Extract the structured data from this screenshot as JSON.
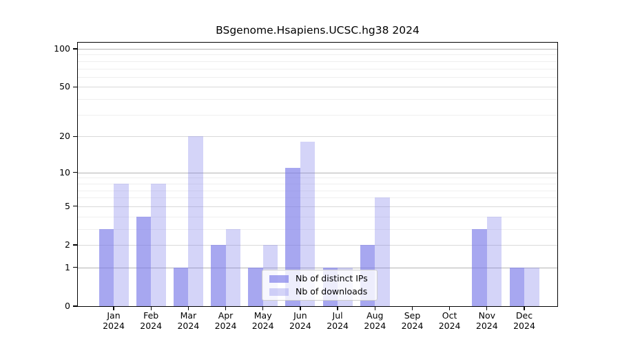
{
  "figure": {
    "background": "#ffffff"
  },
  "chart_data": {
    "type": "bar",
    "title": "BSgenome.Hsapiens.UCSC.hg38 2024",
    "categories": [
      "Jan",
      "Feb",
      "Mar",
      "Apr",
      "May",
      "Jun",
      "Jul",
      "Aug",
      "Sep",
      "Oct",
      "Nov",
      "Dec"
    ],
    "x_year": "2024",
    "series": [
      {
        "name": "Nb of distinct IPs",
        "key": "distinct-ips",
        "color": "rgba(121,121,232,0.66)",
        "values": [
          3,
          4,
          1,
          2,
          1,
          11,
          1,
          2,
          0,
          0,
          3,
          1
        ]
      },
      {
        "name": "Nb of downloads",
        "key": "downloads",
        "color": "rgba(121,121,232,0.32)",
        "values": [
          8,
          8,
          20,
          3,
          2,
          18,
          1,
          6,
          0,
          0,
          4,
          1
        ]
      }
    ],
    "scale": "log1p",
    "ylim": [
      0,
      100
    ],
    "y_ticks": [
      0,
      1,
      2,
      5,
      10,
      20,
      50,
      100
    ],
    "y_gridlines": {
      "decade": [
        1,
        10,
        100
      ],
      "mid": [
        2,
        5,
        20,
        50
      ],
      "minor": [
        3,
        4,
        6,
        7,
        8,
        9,
        30,
        40,
        60,
        70,
        80,
        90
      ]
    },
    "grid": true,
    "legend_position": "inside-bottom-center"
  },
  "colors": {
    "axis": "#000000",
    "grid_decade": "#b3b3b3",
    "grid_mid": "#d9d9d9",
    "grid_minor": "#efefef",
    "legend_border": "#cccccc",
    "legend_bg": "rgba(255,255,255,0.8)"
  }
}
